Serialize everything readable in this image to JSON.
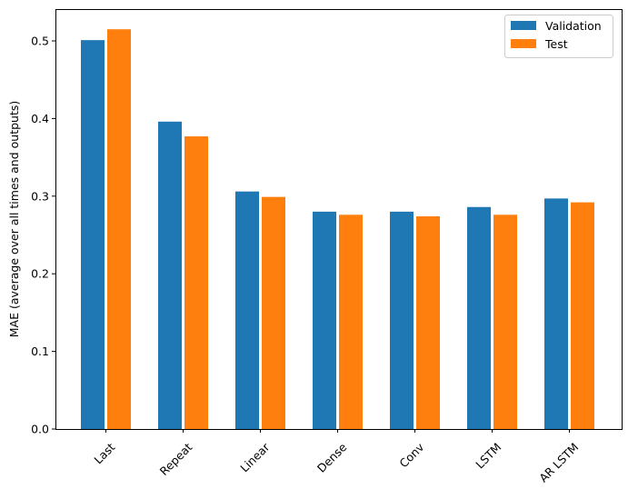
{
  "chart_data": {
    "type": "bar",
    "title": "",
    "xlabel": "",
    "ylabel": "MAE (average over all times and outputs)",
    "categories": [
      "Last",
      "Repeat",
      "Linear",
      "Dense",
      "Conv",
      "LSTM",
      "AR LSTM"
    ],
    "series": [
      {
        "name": "Validation",
        "color": "#1f77b4",
        "values": [
          0.501,
          0.396,
          0.306,
          0.28,
          0.28,
          0.286,
          0.297
        ]
      },
      {
        "name": "Test",
        "color": "#ff7f0e",
        "values": [
          0.515,
          0.377,
          0.299,
          0.276,
          0.274,
          0.276,
          0.292
        ]
      }
    ],
    "ylim": [
      0,
      0.542
    ],
    "yticks": [
      "0.0",
      "0.1",
      "0.2",
      "0.3",
      "0.4",
      "0.5"
    ],
    "grid": false,
    "legend": "top-right",
    "xtick_rotation": 45
  }
}
